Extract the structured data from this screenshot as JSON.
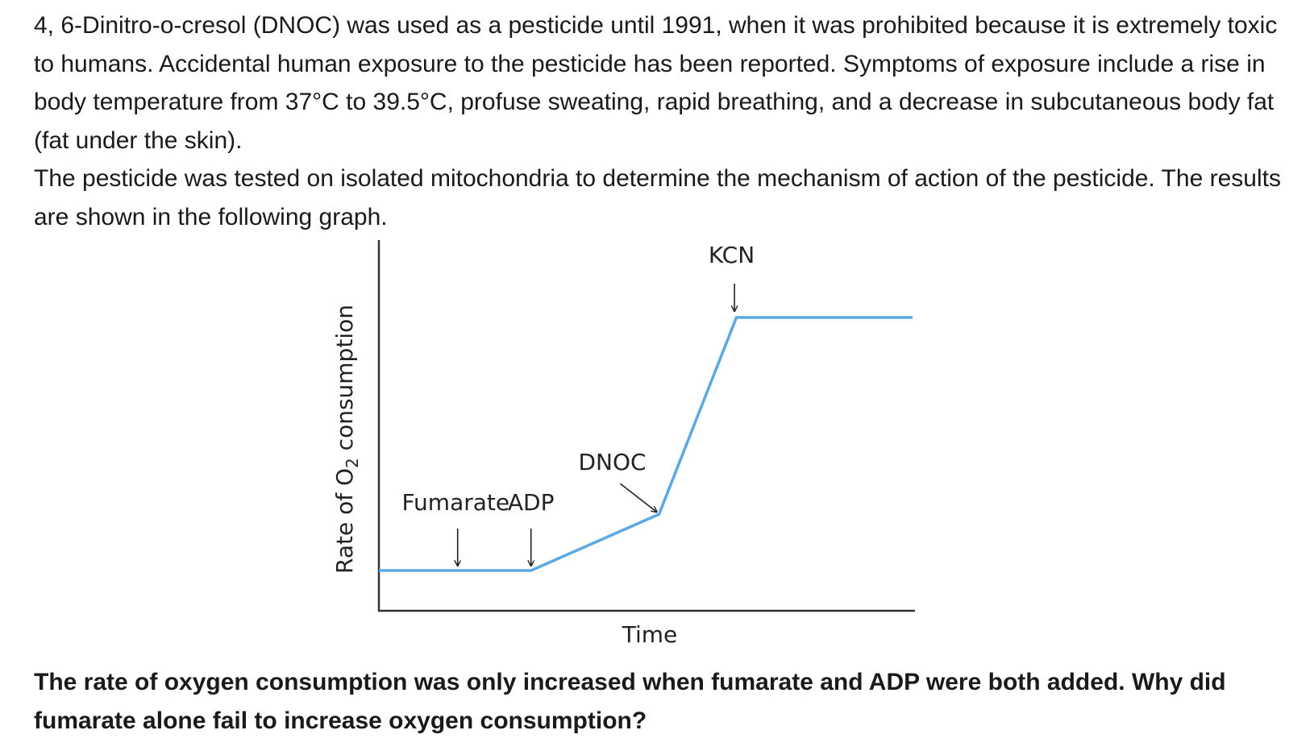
{
  "intro": {
    "paragraph1": "4, 6-Dinitro-o-cresol (DNOC) was used as a pesticide until 1991, when it was prohibited because it is extremely toxic to humans. Accidental human exposure to the pesticide has been reported. Symptoms of exposure include a rise in body temperature from 37°C to 39.5°C, profuse sweating, rapid breathing, and a decrease in subcutaneous body fat (fat under the skin).",
    "paragraph2": "The pesticide was tested on isolated mitochondria to determine the mechanism of action of the pesticide. The results are shown in the following graph."
  },
  "question": "The rate of oxygen consumption was only increased when fumarate and ADP were both added. Why did fumarate alone fail to increase oxygen consumption?",
  "chart_data": {
    "type": "line",
    "title": "",
    "xlabel": "Time",
    "ylabel_prefix": "Rate of O",
    "ylabel_subscript": "2",
    "ylabel_suffix": " consumption",
    "xlim": [
      0,
      100
    ],
    "ylim": [
      0,
      100
    ],
    "grid": false,
    "legend": "none",
    "ticks": "none",
    "series": [
      {
        "color": "#5aa9e6",
        "x": [
          0,
          28.5,
          52.5,
          67,
          100
        ],
        "y": [
          0,
          0,
          16,
          72,
          72
        ]
      }
    ],
    "annotations": [
      {
        "text": "Fumarate",
        "arrow_x": 15,
        "arrow_y": 0
      },
      {
        "text": "ADP",
        "arrow_x": 28.5,
        "arrow_y": 0
      },
      {
        "text": "DNOC",
        "arrow_x": 52.5,
        "arrow_y": 16
      },
      {
        "text": "KCN",
        "arrow_x": 67,
        "arrow_y": 72
      }
    ]
  }
}
